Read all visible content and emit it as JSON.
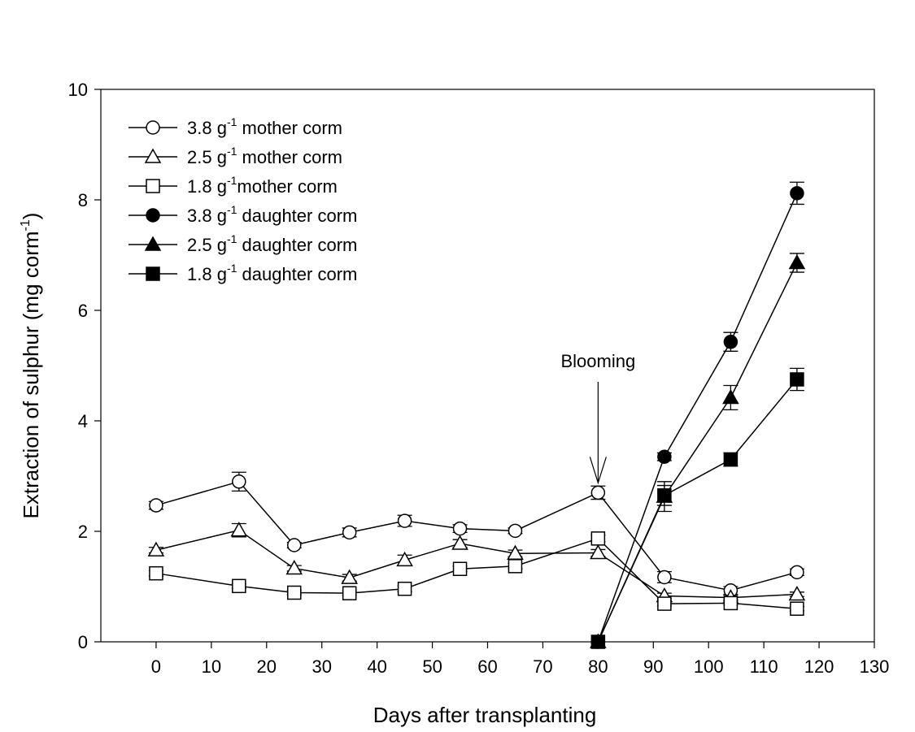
{
  "chart_data": {
    "type": "line",
    "title": "",
    "xlabel": "Days after transplanting",
    "ylabel": "Extraction of sulphur (mg corm",
    "ylabel_sup": "-1",
    "ylabel_close": ")",
    "xlim": [
      -10,
      130
    ],
    "ylim": [
      0,
      10
    ],
    "xticks": [
      0,
      10,
      20,
      30,
      40,
      50,
      60,
      70,
      80,
      90,
      100,
      110,
      120,
      130
    ],
    "yticks": [
      0,
      2,
      4,
      6,
      8,
      10
    ],
    "legend_placement": "top-left",
    "annotation": {
      "text": "Blooming",
      "x": 80,
      "y": 2.7
    },
    "series": [
      {
        "name": "3.8 g",
        "name_sup": "-1",
        "name_rest": " mother corm",
        "marker": "circle",
        "filled": false,
        "x": [
          0,
          15,
          25,
          35,
          45,
          55,
          65,
          80,
          92,
          104,
          116
        ],
        "y": [
          2.47,
          2.9,
          1.75,
          1.98,
          2.19,
          2.05,
          2.01,
          2.7,
          1.17,
          0.93,
          1.26
        ],
        "err": [
          0.07,
          0.17,
          0.05,
          0.08,
          0.1,
          0.07,
          0.05,
          0.12,
          0.1,
          0.07,
          0.06
        ]
      },
      {
        "name": "2.5 g",
        "name_sup": "-1",
        "name_rest": " mother corm",
        "marker": "triangle",
        "filled": false,
        "x": [
          0,
          15,
          25,
          35,
          45,
          55,
          65,
          80,
          92,
          104,
          116
        ],
        "y": [
          1.66,
          2.02,
          1.33,
          1.16,
          1.48,
          1.78,
          1.6,
          1.61,
          0.83,
          0.8,
          0.86
        ],
        "err": [
          0.05,
          0.12,
          0.05,
          0.06,
          0.09,
          0.07,
          0.06,
          0.06,
          0.05,
          0.04,
          0.04
        ]
      },
      {
        "name": "1.8 g",
        "name_sup": "-1",
        "name_rest": "mother corm",
        "marker": "square",
        "filled": false,
        "x": [
          0,
          15,
          25,
          35,
          45,
          55,
          65,
          80,
          92,
          104,
          116
        ],
        "y": [
          1.24,
          1.01,
          0.89,
          0.88,
          0.96,
          1.32,
          1.37,
          1.87,
          0.69,
          0.7,
          0.6
        ],
        "err": [
          0.05,
          0.04,
          0.04,
          0.04,
          0.05,
          0.05,
          0.05,
          0.06,
          0.04,
          0.04,
          0.04
        ]
      },
      {
        "name": "3.8 g",
        "name_sup": "-1",
        "name_rest": " daughter corm",
        "marker": "circle",
        "filled": true,
        "x": [
          80,
          92,
          104,
          116
        ],
        "y": [
          0,
          3.35,
          5.43,
          8.12
        ],
        "err": [
          0,
          0.07,
          0.17,
          0.2
        ]
      },
      {
        "name": "2.5 g",
        "name_sup": "-1",
        "name_rest": " daughter corm",
        "marker": "triangle",
        "filled": true,
        "x": [
          80,
          92,
          104,
          116
        ],
        "y": [
          0,
          2.63,
          4.42,
          6.86
        ],
        "err": [
          0,
          0.27,
          0.22,
          0.17
        ]
      },
      {
        "name": "1.8 g",
        "name_sup": "-1",
        "name_rest": " daughter corm",
        "marker": "square",
        "filled": true,
        "x": [
          80,
          92,
          104,
          116
        ],
        "y": [
          0,
          2.65,
          3.3,
          4.75
        ],
        "err": [
          0,
          0.18,
          0.12,
          0.2
        ]
      }
    ]
  }
}
